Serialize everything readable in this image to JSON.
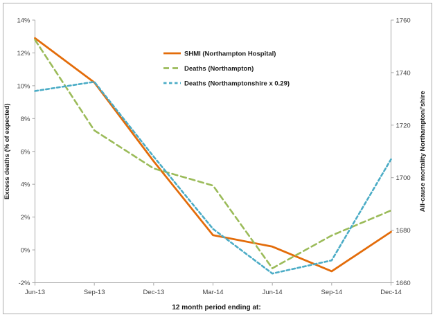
{
  "chart_data": {
    "type": "line",
    "x_categories": [
      "Jun-13",
      "Sep-13",
      "Dec-13",
      "Mar-14",
      "Jun-14",
      "Sep-14",
      "Dec-14"
    ],
    "xlabel": "12 month period ending at:",
    "grid": false,
    "legend_position": "inside-top-center",
    "left_axis": {
      "label": "Excess deaths (% of expected)",
      "min": -2,
      "max": 14,
      "tick_step": 2,
      "tick_labels": [
        "14%",
        "12%",
        "10%",
        "8%",
        "6%",
        "4%",
        "2%",
        "0%",
        "-2%"
      ]
    },
    "right_axis": {
      "label": "All-cause mortality Northampton/'shire",
      "min": 1660,
      "max": 1760,
      "tick_step": 20,
      "tick_labels": [
        "1760",
        "1740",
        "1720",
        "1700",
        "1680",
        "1660"
      ]
    },
    "series": [
      {
        "name": "SHMI (Northampton Hospital)",
        "axis": "left",
        "unit": "percent",
        "color": "#E36C0A",
        "line_style": "solid",
        "values": [
          12.9,
          10.2,
          5.4,
          0.9,
          0.2,
          -1.3,
          1.1
        ]
      },
      {
        "name": "Deaths (Northampton)",
        "axis": "right",
        "unit": "deaths",
        "color": "#9BBB59",
        "line_style": "dashed-long",
        "values": [
          1752.5,
          1718,
          1703.5,
          1697,
          1665.5,
          1678,
          1687.5
        ]
      },
      {
        "name": "Deaths (Northamptonshire x 0.29)",
        "axis": "right",
        "unit": "deaths",
        "color": "#4BACC6",
        "line_style": "dashed-short",
        "values": [
          1733,
          1736.5,
          1708,
          1680.5,
          1663.5,
          1668.5,
          1707
        ]
      }
    ],
    "frame_border_color": "#ABABAB",
    "axis_line_color": "#A6A6A6"
  }
}
